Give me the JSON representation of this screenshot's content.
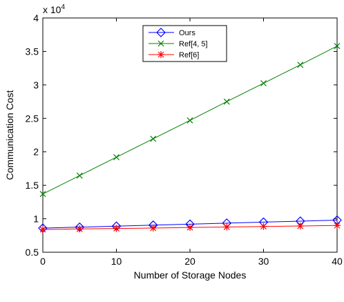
{
  "chart_data": {
    "type": "line",
    "title": "",
    "xlabel": "Number of Storage Nodes",
    "ylabel": "Communication Cost",
    "y_multiplier_label": "x 10",
    "y_multiplier_exponent": "4",
    "xlim": [
      0,
      40
    ],
    "ylim": [
      0.5,
      4
    ],
    "x_ticks": [
      0,
      10,
      20,
      30,
      40
    ],
    "y_ticks": [
      0.5,
      1,
      1.5,
      2,
      2.5,
      3,
      3.5,
      4
    ],
    "x_tick_labels": [
      "0",
      "10",
      "20",
      "30",
      "40"
    ],
    "y_tick_labels": [
      "0.5",
      "1",
      "1.5",
      "2",
      "2.5",
      "3",
      "3.5",
      "4"
    ],
    "x": [
      0,
      5,
      10,
      15,
      20,
      25,
      30,
      35,
      40
    ],
    "grid": false,
    "legend_position": "top-center",
    "series": [
      {
        "name": "Ours",
        "color": "#0000ff",
        "marker": "diamond",
        "values": [
          0.86,
          0.875,
          0.89,
          0.905,
          0.92,
          0.935,
          0.95,
          0.965,
          0.98
        ]
      },
      {
        "name": "Ref[4, 5]",
        "color": "#008000",
        "marker": "x",
        "values": [
          1.37,
          1.645,
          1.92,
          2.195,
          2.47,
          2.75,
          3.025,
          3.3,
          3.58
        ]
      },
      {
        "name": "Ref[6]",
        "color": "#ff0000",
        "marker": "star",
        "values": [
          0.84,
          0.848,
          0.855,
          0.862,
          0.87,
          0.877,
          0.885,
          0.892,
          0.9
        ]
      }
    ]
  }
}
